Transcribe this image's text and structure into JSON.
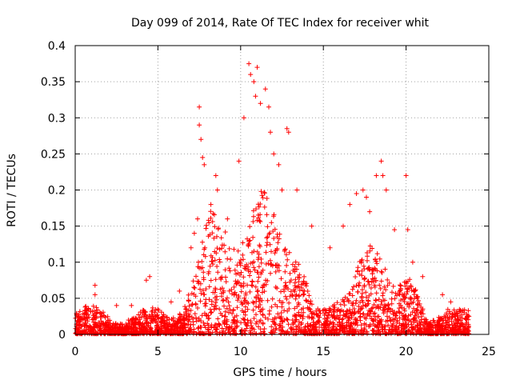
{
  "chart_data": {
    "type": "scatter",
    "title": "Day 099 of 2014, Rate Of TEC Index for receiver whit",
    "xlabel": "GPS time / hours",
    "ylabel": "ROTI / TECUs",
    "xlim": [
      0,
      25
    ],
    "ylim": [
      0,
      0.4
    ],
    "x_ticks": [
      0,
      5,
      10,
      15,
      20,
      25
    ],
    "y_ticks": [
      0,
      0.05,
      0.1,
      0.15,
      0.2,
      0.25,
      0.3,
      0.35,
      0.4
    ],
    "x_tick_labels": [
      "0",
      "5",
      "10",
      "15",
      "20",
      "25"
    ],
    "y_tick_labels": [
      "0",
      "0.05",
      "0.1",
      "0.15",
      "0.2",
      "0.25",
      "0.3",
      "0.35",
      "0.4"
    ],
    "grid": true,
    "marker": "+",
    "series": [
      {
        "name": "ROTI",
        "color": "#ff0000",
        "x": [
          0.2,
          0.8,
          1.2,
          1.2,
          2.5,
          3.4,
          4.3,
          4.5,
          5.8,
          6.3,
          7.0,
          7.2,
          7.4,
          7.5,
          7.5,
          7.6,
          7.7,
          7.8,
          8.2,
          8.5,
          8.6,
          9.2,
          9.9,
          10.2,
          10.5,
          10.6,
          10.8,
          10.9,
          11.0,
          11.2,
          11.5,
          11.7,
          11.8,
          12.0,
          12.3,
          12.5,
          12.8,
          12.9,
          13.4,
          14.3,
          15.4,
          16.2,
          16.6,
          17.0,
          17.4,
          17.6,
          17.8,
          18.2,
          18.5,
          18.6,
          18.8,
          19.3,
          20.0,
          20.1,
          20.4,
          21.0,
          22.2,
          22.7,
          23.5
        ],
        "y": [
          0.025,
          0.035,
          0.068,
          0.055,
          0.04,
          0.04,
          0.075,
          0.08,
          0.045,
          0.06,
          0.12,
          0.14,
          0.16,
          0.315,
          0.29,
          0.27,
          0.245,
          0.235,
          0.18,
          0.22,
          0.2,
          0.16,
          0.24,
          0.3,
          0.375,
          0.36,
          0.35,
          0.33,
          0.37,
          0.32,
          0.34,
          0.315,
          0.28,
          0.25,
          0.235,
          0.2,
          0.285,
          0.28,
          0.2,
          0.15,
          0.12,
          0.15,
          0.18,
          0.195,
          0.2,
          0.19,
          0.17,
          0.22,
          0.24,
          0.22,
          0.2,
          0.145,
          0.22,
          0.145,
          0.1,
          0.08,
          0.055,
          0.045,
          0.03
        ]
      }
    ]
  }
}
